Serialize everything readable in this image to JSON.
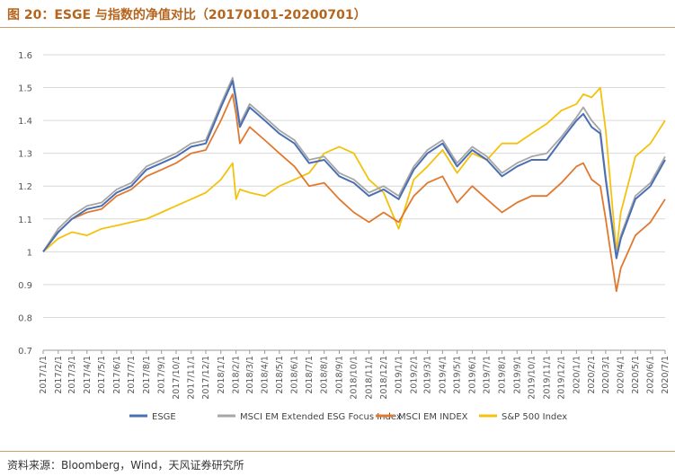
{
  "header": {
    "title": "图 20：ESGE 与指数的净值对比（20170101-20200701）"
  },
  "footer": {
    "source": "资料来源：Bloomberg，Wind，天风证券研究所"
  },
  "colors": {
    "esge": "#4a6fb3",
    "esg_focus": "#a6a6a6",
    "msci_em": "#e0792f",
    "sp500": "#f4c20d",
    "axis": "#999999",
    "grid": "#d9d9d9"
  },
  "chart_data": {
    "type": "line",
    "title": "图 20：ESGE 与指数的净值对比（20170101-20200701）",
    "xlabel": "",
    "ylabel": "",
    "ylim": [
      0.7,
      1.6
    ],
    "yticks": [
      "0.7",
      "0.8",
      "0.9",
      "1",
      "1.1",
      "1.2",
      "1.3",
      "1.4",
      "1.5",
      "1.6"
    ],
    "xticks": [
      "2017/1/1",
      "2017/2/1",
      "2017/3/1",
      "2017/4/1",
      "2017/5/1",
      "2017/6/1",
      "2017/7/1",
      "2017/8/1",
      "2017/9/1",
      "2017/10/1",
      "2017/11/1",
      "2017/12/1",
      "2018/1/1",
      "2018/2/1",
      "2018/3/1",
      "2018/4/1",
      "2018/5/1",
      "2018/6/1",
      "2018/7/1",
      "2018/8/1",
      "2018/9/1",
      "2018/10/1",
      "2018/11/1",
      "2018/12/1",
      "2019/1/1",
      "2019/2/1",
      "2019/3/1",
      "2019/4/1",
      "2019/5/1",
      "2019/6/1",
      "2019/7/1",
      "2019/8/1",
      "2019/9/1",
      "2019/10/1",
      "2019/11/1",
      "2019/12/1",
      "2020/1/1",
      "2020/2/1",
      "2020/3/1",
      "2020/4/1",
      "2020/5/1",
      "2020/6/1",
      "2020/7/1"
    ],
    "x": [
      "2017/1/1",
      "2017/2/1",
      "2017/3/1",
      "2017/4/1",
      "2017/5/1",
      "2017/6/1",
      "2017/7/1",
      "2017/8/1",
      "2017/9/1",
      "2017/10/1",
      "2017/11/1",
      "2017/12/1",
      "2018/1/1",
      "2018/1/25",
      "2018/2/1",
      "2018/2/9",
      "2018/3/1",
      "2018/4/1",
      "2018/5/1",
      "2018/6/1",
      "2018/7/1",
      "2018/8/1",
      "2018/9/1",
      "2018/10/1",
      "2018/11/1",
      "2018/12/1",
      "2019/1/1",
      "2019/2/1",
      "2019/3/1",
      "2019/4/1",
      "2019/5/1",
      "2019/6/1",
      "2019/7/1",
      "2019/8/1",
      "2019/9/1",
      "2019/10/1",
      "2019/11/1",
      "2019/12/1",
      "2020/1/1",
      "2020/1/15",
      "2020/2/1",
      "2020/2/19",
      "2020/3/1",
      "2020/3/23",
      "2020/4/1",
      "2020/5/1",
      "2020/6/1",
      "2020/7/1"
    ],
    "legend": {
      "position": "bottom"
    },
    "grid": true,
    "series": [
      {
        "name": "ESGE",
        "key": "esge",
        "values": [
          1.0,
          1.06,
          1.1,
          1.13,
          1.14,
          1.18,
          1.2,
          1.25,
          1.27,
          1.29,
          1.32,
          1.33,
          1.44,
          1.52,
          1.46,
          1.38,
          1.44,
          1.4,
          1.36,
          1.33,
          1.27,
          1.28,
          1.23,
          1.21,
          1.17,
          1.19,
          1.16,
          1.25,
          1.3,
          1.33,
          1.26,
          1.31,
          1.28,
          1.23,
          1.26,
          1.28,
          1.28,
          1.34,
          1.4,
          1.42,
          1.38,
          1.36,
          1.22,
          0.98,
          1.04,
          1.16,
          1.2,
          1.28
        ]
      },
      {
        "name": "MSCI EM Extended ESG Focus Index",
        "key": "esg_focus",
        "values": [
          1.0,
          1.07,
          1.11,
          1.14,
          1.15,
          1.19,
          1.21,
          1.26,
          1.28,
          1.3,
          1.33,
          1.34,
          1.45,
          1.53,
          1.47,
          1.39,
          1.45,
          1.41,
          1.37,
          1.34,
          1.28,
          1.29,
          1.24,
          1.22,
          1.18,
          1.2,
          1.17,
          1.26,
          1.31,
          1.34,
          1.27,
          1.32,
          1.29,
          1.24,
          1.27,
          1.29,
          1.3,
          1.35,
          1.41,
          1.44,
          1.4,
          1.37,
          1.23,
          0.99,
          1.05,
          1.17,
          1.21,
          1.29
        ]
      },
      {
        "name": "MSCI EM INDEX",
        "key": "msci_em",
        "values": [
          1.0,
          1.06,
          1.1,
          1.12,
          1.13,
          1.17,
          1.19,
          1.23,
          1.25,
          1.27,
          1.3,
          1.31,
          1.4,
          1.48,
          1.42,
          1.33,
          1.38,
          1.34,
          1.3,
          1.26,
          1.2,
          1.21,
          1.16,
          1.12,
          1.09,
          1.12,
          1.09,
          1.17,
          1.21,
          1.23,
          1.15,
          1.2,
          1.16,
          1.12,
          1.15,
          1.17,
          1.17,
          1.21,
          1.26,
          1.27,
          1.22,
          1.2,
          1.1,
          0.88,
          0.95,
          1.05,
          1.09,
          1.16
        ]
      },
      {
        "name": "S&P 500 Index",
        "key": "sp500",
        "values": [
          1.0,
          1.04,
          1.06,
          1.05,
          1.07,
          1.08,
          1.09,
          1.1,
          1.12,
          1.14,
          1.16,
          1.18,
          1.22,
          1.27,
          1.16,
          1.19,
          1.18,
          1.17,
          1.2,
          1.22,
          1.24,
          1.3,
          1.32,
          1.3,
          1.22,
          1.18,
          1.07,
          1.22,
          1.26,
          1.31,
          1.24,
          1.3,
          1.28,
          1.33,
          1.33,
          1.36,
          1.39,
          1.43,
          1.45,
          1.48,
          1.47,
          1.5,
          1.37,
          1.0,
          1.12,
          1.29,
          1.33,
          1.4
        ]
      }
    ]
  }
}
